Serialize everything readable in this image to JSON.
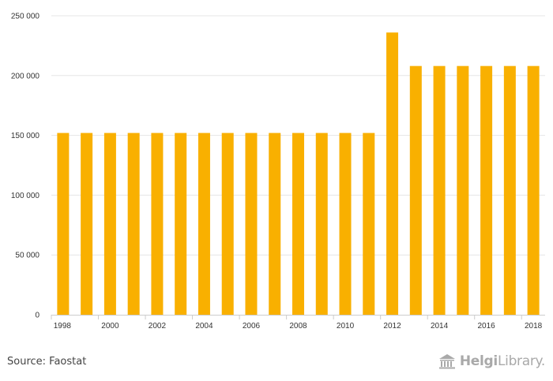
{
  "chart_data": {
    "type": "bar",
    "categories": [
      "1998",
      "1999",
      "2000",
      "2001",
      "2002",
      "2003",
      "2004",
      "2005",
      "2006",
      "2007",
      "2008",
      "2009",
      "2010",
      "2011",
      "2012",
      "2013",
      "2014",
      "2015",
      "2016",
      "2017",
      "2018"
    ],
    "values": [
      152000,
      152000,
      152000,
      152000,
      152000,
      152000,
      152000,
      152000,
      152000,
      152000,
      152000,
      152000,
      152000,
      152000,
      236000,
      208000,
      208000,
      208000,
      208000,
      208000,
      208000
    ],
    "x_tick_labels": [
      "1998",
      "2000",
      "2002",
      "2004",
      "2006",
      "2008",
      "2010",
      "2012",
      "2014",
      "2016",
      "2018"
    ],
    "y_ticks": [
      0,
      50000,
      100000,
      150000,
      200000,
      250000
    ],
    "y_tick_labels": [
      "0",
      "50 000",
      "100 000",
      "150 000",
      "200 000",
      "250 000"
    ],
    "ylim": [
      0,
      250000
    ],
    "grid": true,
    "legend": "none",
    "bar_color": "#f9b000",
    "grid_color": "#e6e6e6"
  },
  "footer": {
    "source": "Source: Faostat",
    "logo_bold": "Helgi",
    "logo_light": "Library",
    "logo_dot": "."
  }
}
